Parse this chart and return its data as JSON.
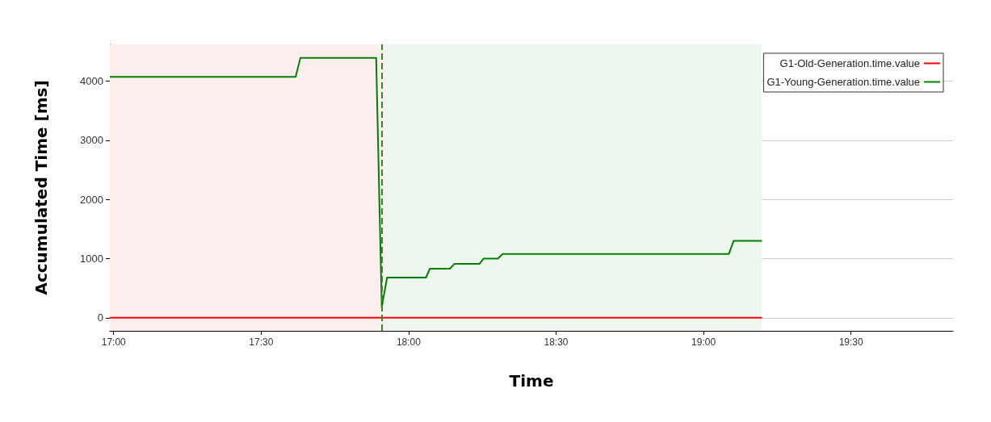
{
  "chart_data": {
    "type": "line",
    "xlabel": "Time",
    "ylabel": "Accumulated Time [ms]",
    "xlim": [
      16.987,
      19.846
    ],
    "ylim": [
      -220,
      4620
    ],
    "xticks": [
      {
        "value": 17,
        "label": "17:00"
      },
      {
        "value": 17.5,
        "label": "17:30"
      },
      {
        "value": 18,
        "label": "18:00"
      },
      {
        "value": 18.5,
        "label": "18:30"
      },
      {
        "value": 19,
        "label": "19:00"
      },
      {
        "value": 19.5,
        "label": "19:30"
      }
    ],
    "yticks": [
      0,
      1000,
      2000,
      3000,
      4000
    ],
    "grid": "y",
    "legend": "top right",
    "marker": "none",
    "line_style": "solid",
    "series": [
      {
        "name": "G1-Old-Generation.time.value",
        "color": "#ff0000",
        "x": [
          16.987,
          19.198
        ],
        "values": [
          0,
          0
        ]
      },
      {
        "name": "G1-Young-Generation.time.value",
        "color": "#008000",
        "x": [
          16.987,
          17.617,
          17.633,
          17.89,
          17.909,
          17.927,
          18.059,
          18.072,
          18.14,
          18.155,
          18.24,
          18.254,
          18.303,
          18.319,
          19.086,
          19.102,
          19.198
        ],
        "values": [
          4070,
          4070,
          4390,
          4390,
          180,
          680,
          680,
          830,
          830,
          910,
          910,
          1000,
          1000,
          1080,
          1080,
          1300,
          1300
        ]
      }
    ],
    "ref_lines": [
      {
        "axis": "x",
        "value": 17.906,
        "color": "#2e8b2e",
        "line_style": "dashed"
      }
    ],
    "bands": [
      {
        "axis": "x",
        "from": 16.987,
        "to": 17.92,
        "color": "#fdeeee"
      },
      {
        "axis": "x",
        "from": 17.92,
        "to": 19.198,
        "color": "#eef7ee"
      }
    ]
  }
}
